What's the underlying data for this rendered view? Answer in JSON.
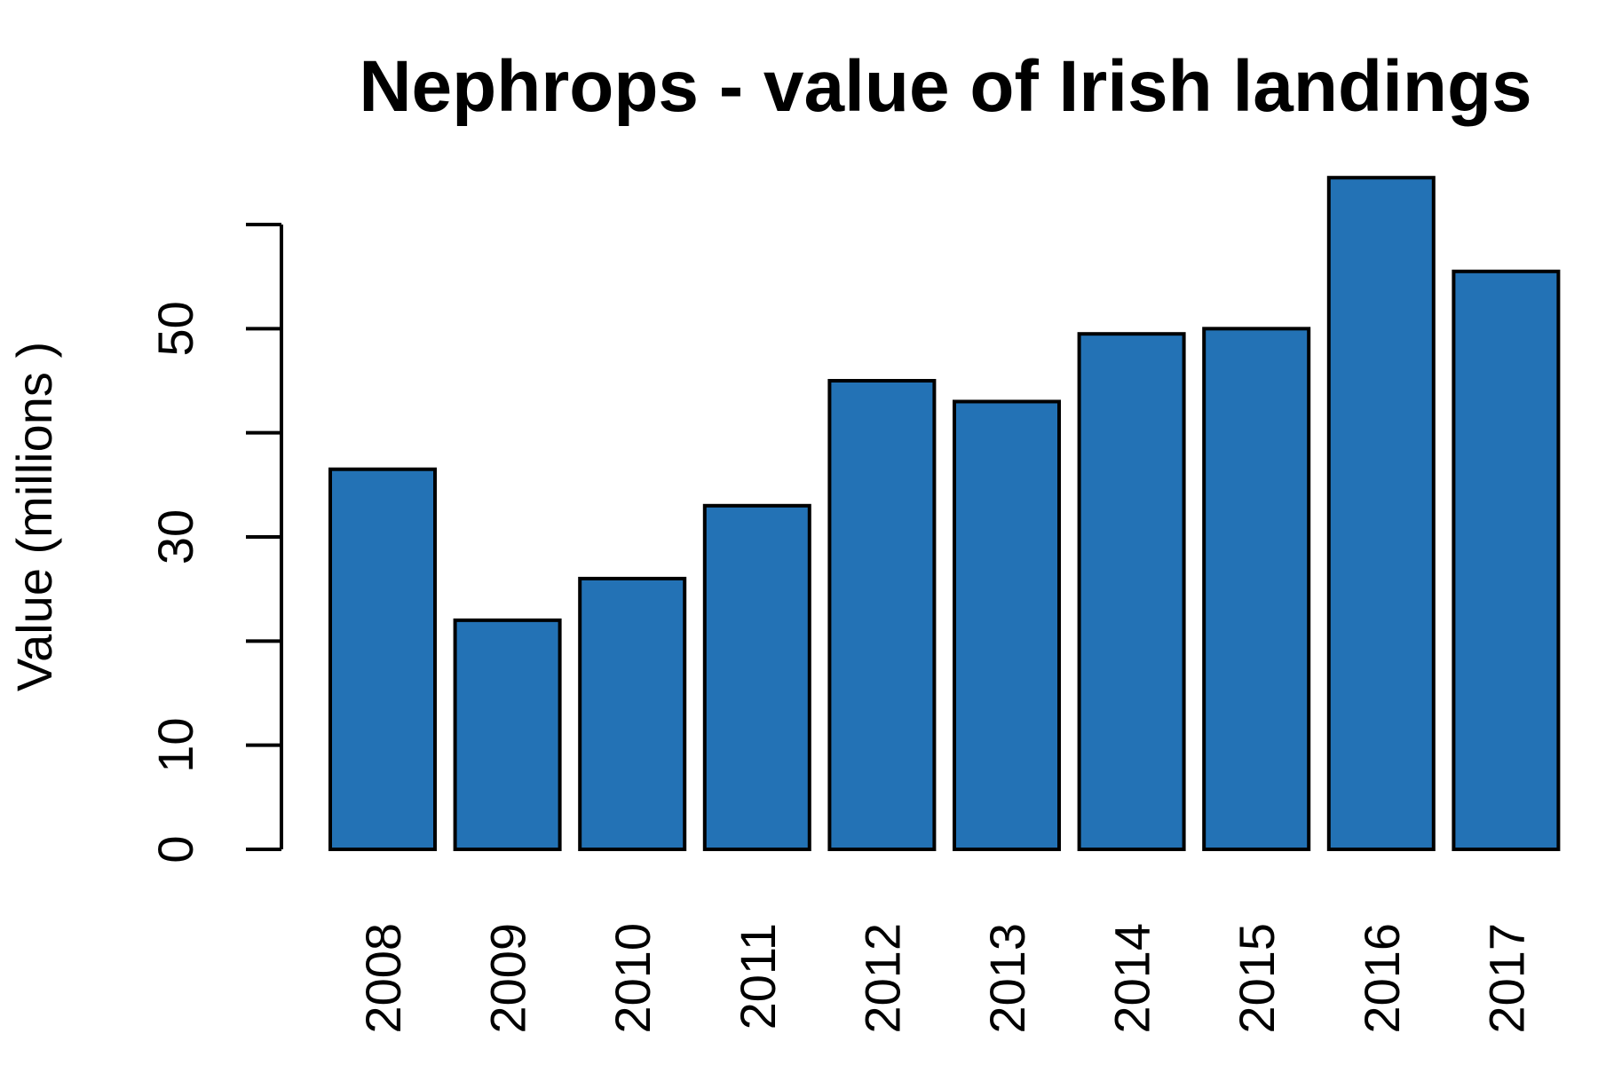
{
  "chart_data": {
    "type": "bar",
    "title": "Nephrops - value of Irish landings",
    "xlabel": "",
    "ylabel": "Value (millions )",
    "categories": [
      "2008",
      "2009",
      "2010",
      "2011",
      "2012",
      "2013",
      "2014",
      "2015",
      "2016",
      "2017"
    ],
    "values": [
      36.5,
      22,
      26,
      33,
      45,
      43,
      49.5,
      50,
      64.5,
      55.5
    ],
    "ylim": [
      0,
      60
    ],
    "yticks": [
      0,
      10,
      20,
      30,
      40,
      50,
      60
    ],
    "ytick_labels": [
      "0",
      "10",
      "",
      "30",
      "",
      "50",
      ""
    ],
    "bar_color": "#2372b5",
    "grid": false,
    "legend": "none"
  }
}
